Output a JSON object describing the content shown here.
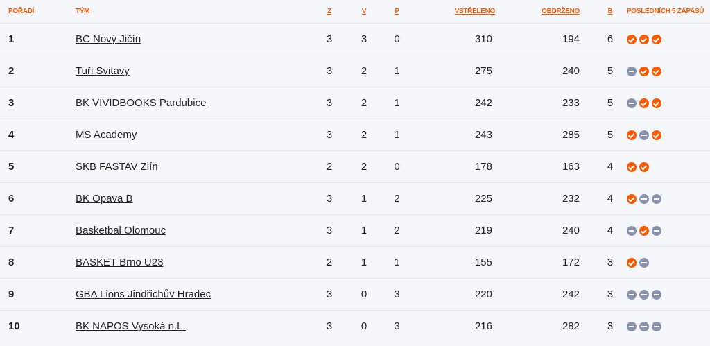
{
  "headers": {
    "rank": "POŘADÍ",
    "team": "TÝM",
    "z": "Z",
    "v": "V",
    "p": "P",
    "scored": "VSTŘELENO",
    "conceded": "OBDRŽENO",
    "b": "B",
    "last5": "POSLEDNÍCH 5 ZÁPASŮ"
  },
  "colors": {
    "accent": "#ff5a00",
    "loss": "#8a93ad"
  },
  "rows": [
    {
      "rank": "1",
      "team": "BC Nový Jičín",
      "z": "3",
      "v": "3",
      "p": "0",
      "scored": "310",
      "conceded": "194",
      "b": "6",
      "form": [
        "W",
        "W",
        "W"
      ]
    },
    {
      "rank": "2",
      "team": "Tuři Svitavy",
      "z": "3",
      "v": "2",
      "p": "1",
      "scored": "275",
      "conceded": "240",
      "b": "5",
      "form": [
        "L",
        "W",
        "W"
      ]
    },
    {
      "rank": "3",
      "team": "BK VIVIDBOOKS Pardubice",
      "z": "3",
      "v": "2",
      "p": "1",
      "scored": "242",
      "conceded": "233",
      "b": "5",
      "form": [
        "L",
        "W",
        "W"
      ]
    },
    {
      "rank": "4",
      "team": "MS Academy",
      "z": "3",
      "v": "2",
      "p": "1",
      "scored": "243",
      "conceded": "285",
      "b": "5",
      "form": [
        "W",
        "L",
        "W"
      ]
    },
    {
      "rank": "5",
      "team": "SKB FASTAV Zlín",
      "z": "2",
      "v": "2",
      "p": "0",
      "scored": "178",
      "conceded": "163",
      "b": "4",
      "form": [
        "W",
        "W"
      ]
    },
    {
      "rank": "6",
      "team": "BK Opava B",
      "z": "3",
      "v": "1",
      "p": "2",
      "scored": "225",
      "conceded": "232",
      "b": "4",
      "form": [
        "W",
        "L",
        "L"
      ]
    },
    {
      "rank": "7",
      "team": "Basketbal Olomouc",
      "z": "3",
      "v": "1",
      "p": "2",
      "scored": "219",
      "conceded": "240",
      "b": "4",
      "form": [
        "L",
        "W",
        "L"
      ]
    },
    {
      "rank": "8",
      "team": "BASKET Brno U23",
      "z": "2",
      "v": "1",
      "p": "1",
      "scored": "155",
      "conceded": "172",
      "b": "3",
      "form": [
        "W",
        "L"
      ]
    },
    {
      "rank": "9",
      "team": "GBA Lions Jindřichův Hradec",
      "z": "3",
      "v": "0",
      "p": "3",
      "scored": "220",
      "conceded": "242",
      "b": "3",
      "form": [
        "L",
        "L",
        "L"
      ]
    },
    {
      "rank": "10",
      "team": "BK NAPOS Vysoká n.L.",
      "z": "3",
      "v": "0",
      "p": "3",
      "scored": "216",
      "conceded": "282",
      "b": "3",
      "form": [
        "L",
        "L",
        "L"
      ]
    }
  ]
}
